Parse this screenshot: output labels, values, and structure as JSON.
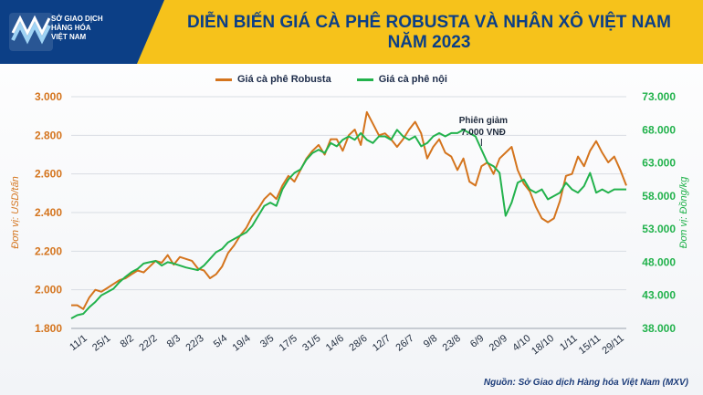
{
  "header": {
    "logo_lines": [
      "SỞ GIAO DỊCH",
      "HÀNG HÓA",
      "VIỆT NAM"
    ],
    "title_line1": "DIỄN BIẾN GIÁ CÀ PHÊ ROBUSTA VÀ NHÂN XÔ VIỆT NAM",
    "title_line2": "NĂM 2023"
  },
  "source": "Nguồn: Sở Giao dịch Hàng hóa Việt Nam (MXV)",
  "colors": {
    "robusta": "#d4741d",
    "domestic": "#22b24c",
    "header_blue": "#0c3f86",
    "header_yellow": "#f6c21b"
  },
  "chart_data": {
    "type": "line",
    "title": "DIỄN BIẾN GIÁ CÀ PHÊ ROBUSTA VÀ NHÂN XÔ VIỆT NAM NĂM 2023",
    "legend_position": "top-center",
    "x_ticks": [
      "11/1",
      "25/1",
      "8/2",
      "22/2",
      "8/3",
      "22/3",
      "5/4",
      "19/4",
      "3/5",
      "17/5",
      "31/5",
      "14/6",
      "28/6",
      "12/7",
      "26/7",
      "9/8",
      "23/8",
      "6/9",
      "20/9",
      "4/10",
      "18/10",
      "1/11",
      "15/11",
      "29/11"
    ],
    "y_left": {
      "label": "Đơn vị: USD/tấn",
      "min": 1800,
      "max": 3000,
      "ticks": [
        "1.800",
        "2.000",
        "2.200",
        "2.400",
        "2.600",
        "2.800",
        "3.000"
      ]
    },
    "y_right": {
      "label": "Đơn vị: Đồng/kg",
      "min": 38000,
      "max": 73000,
      "ticks": [
        "38.000",
        "43.000",
        "48.000",
        "53.000",
        "58.000",
        "63.000",
        "68.000",
        "73.000"
      ]
    },
    "annotation": {
      "text_line1": "Phiên giảm",
      "text_line2": "7.000 VNĐ",
      "at_index": 68
    },
    "series": [
      {
        "name": "Giá cà phê Robusta",
        "axis": "left",
        "values": [
          1920,
          1920,
          1900,
          1960,
          2000,
          1990,
          2010,
          2030,
          2050,
          2060,
          2080,
          2100,
          2090,
          2120,
          2150,
          2140,
          2180,
          2130,
          2170,
          2160,
          2150,
          2110,
          2100,
          2060,
          2080,
          2120,
          2190,
          2230,
          2280,
          2320,
          2380,
          2420,
          2470,
          2500,
          2470,
          2540,
          2590,
          2560,
          2620,
          2680,
          2720,
          2750,
          2700,
          2780,
          2780,
          2720,
          2800,
          2830,
          2750,
          2920,
          2860,
          2800,
          2810,
          2780,
          2740,
          2780,
          2830,
          2870,
          2810,
          2680,
          2740,
          2780,
          2710,
          2690,
          2620,
          2680,
          2560,
          2540,
          2640,
          2660,
          2600,
          2680,
          2710,
          2740,
          2620,
          2550,
          2510,
          2430,
          2370,
          2350,
          2370,
          2460,
          2590,
          2600,
          2690,
          2640,
          2720,
          2770,
          2710,
          2660,
          2690,
          2620,
          2540
        ]
      },
      {
        "name": "Giá cà phê nội",
        "axis": "right",
        "values": [
          39500,
          40000,
          40200,
          41200,
          42000,
          43000,
          43500,
          44000,
          45000,
          45800,
          46500,
          47000,
          47800,
          48000,
          48200,
          47500,
          48000,
          47800,
          47500,
          47200,
          47000,
          46800,
          47500,
          48500,
          49500,
          50000,
          51000,
          51500,
          52000,
          52500,
          53500,
          55000,
          56500,
          57000,
          56500,
          59000,
          60500,
          61500,
          62000,
          63500,
          64500,
          65000,
          64500,
          66000,
          65500,
          66500,
          67000,
          66500,
          67500,
          66500,
          66000,
          67000,
          67000,
          66500,
          68000,
          67000,
          66500,
          67000,
          65500,
          66000,
          67000,
          67500,
          67000,
          67500,
          67500,
          68000,
          67500,
          67000,
          65000,
          63000,
          62500,
          61500,
          55000,
          57000,
          60000,
          60500,
          59000,
          58500,
          59000,
          57500,
          58000,
          58500,
          60000,
          59000,
          58500,
          59500,
          61500,
          58500,
          59000,
          58500,
          59000,
          59000,
          59000
        ]
      }
    ]
  }
}
